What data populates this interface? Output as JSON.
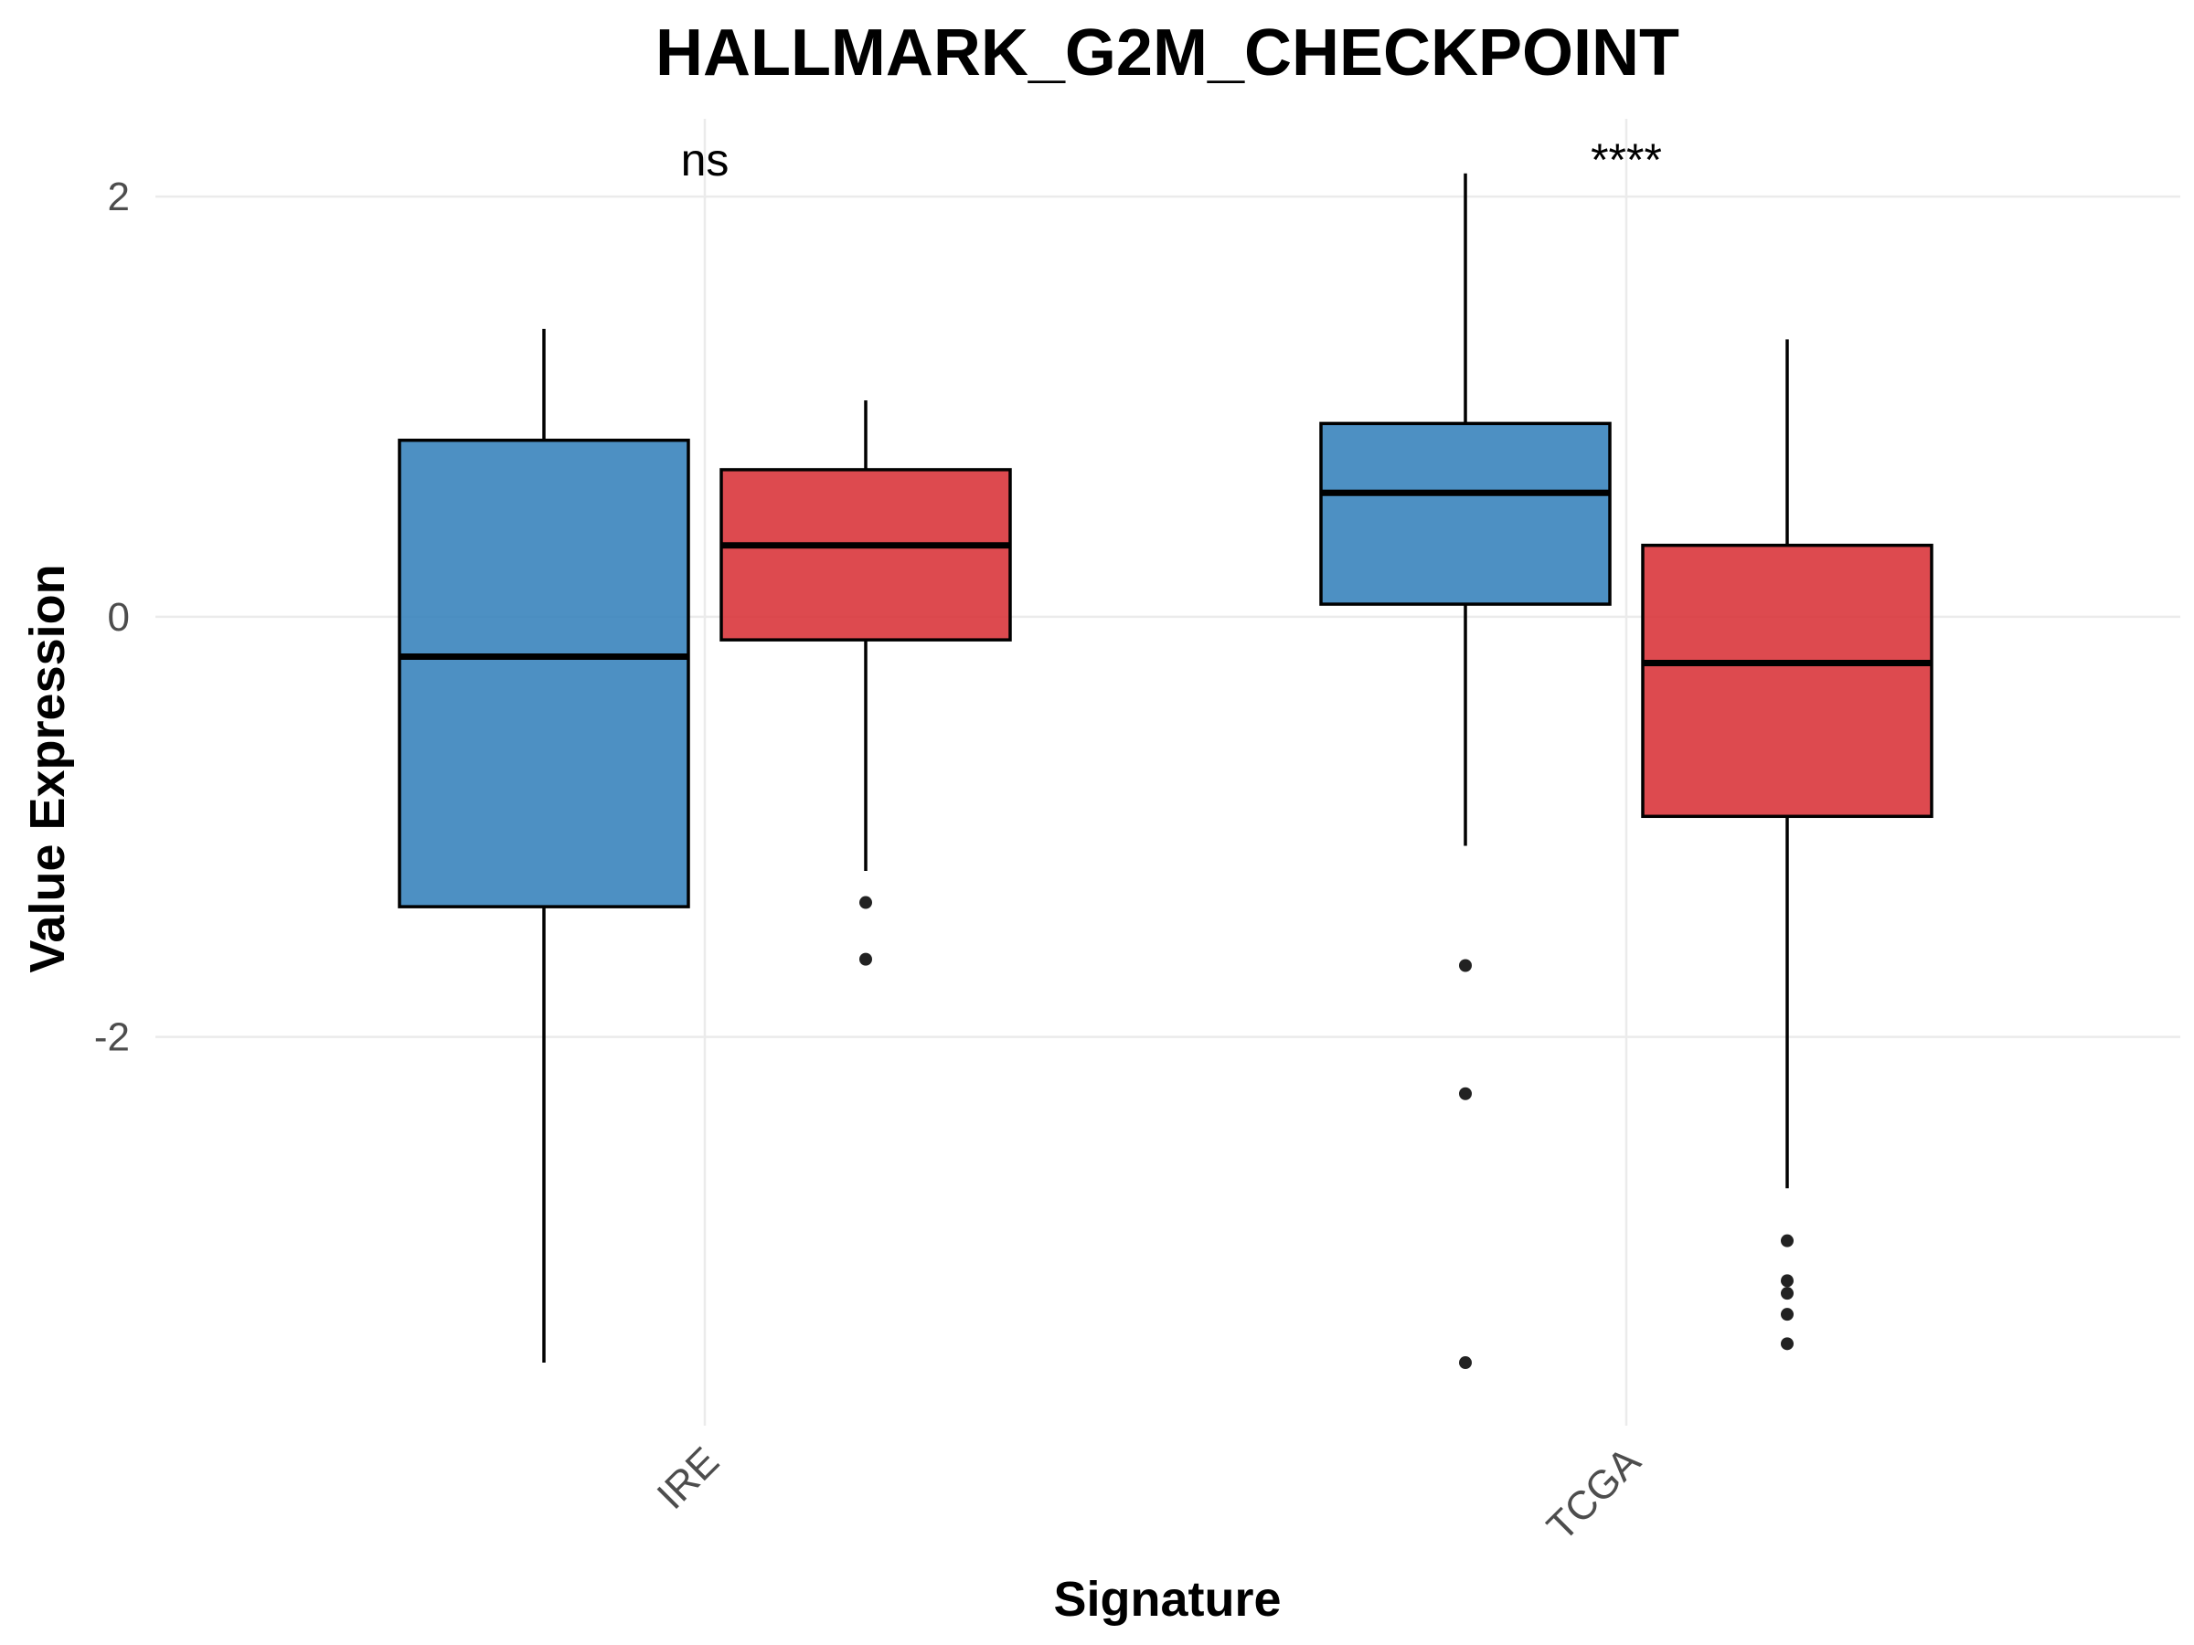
{
  "chart_data": {
    "type": "boxplot",
    "title": "HALLMARK_G2M_CHECKPOINT",
    "xlabel": "Signature",
    "ylabel": "Value Expression",
    "categories": [
      "IRE",
      "TCGA"
    ],
    "ylim": [
      -3.85,
      2.37
    ],
    "yticks": [
      -2,
      0,
      2
    ],
    "ytick_labels": [
      "-2",
      "0",
      "2"
    ],
    "grid": true,
    "legend": "none",
    "series_colors": [
      "#3a84bd",
      "#d9363c"
    ],
    "significance": [
      "ns",
      "****"
    ],
    "boxes": [
      {
        "category": "IRE",
        "series": 0,
        "min": -3.55,
        "q1": -1.38,
        "median": -0.19,
        "q3": 0.84,
        "max": 1.37,
        "outliers": []
      },
      {
        "category": "IRE",
        "series": 1,
        "min": -1.21,
        "q1": -0.11,
        "median": 0.34,
        "q3": 0.7,
        "max": 1.03,
        "outliers": [
          -1.36,
          -1.63
        ]
      },
      {
        "category": "TCGA",
        "series": 0,
        "min": -1.09,
        "q1": 0.06,
        "median": 0.59,
        "q3": 0.92,
        "max": 2.11,
        "outliers": [
          -1.66,
          -2.27,
          -3.55
        ]
      },
      {
        "category": "TCGA",
        "series": 1,
        "min": -2.72,
        "q1": -0.95,
        "median": -0.22,
        "q3": 0.34,
        "max": 1.32,
        "outliers": [
          -2.97,
          -3.16,
          -3.22,
          -3.32,
          -3.46
        ]
      }
    ]
  }
}
